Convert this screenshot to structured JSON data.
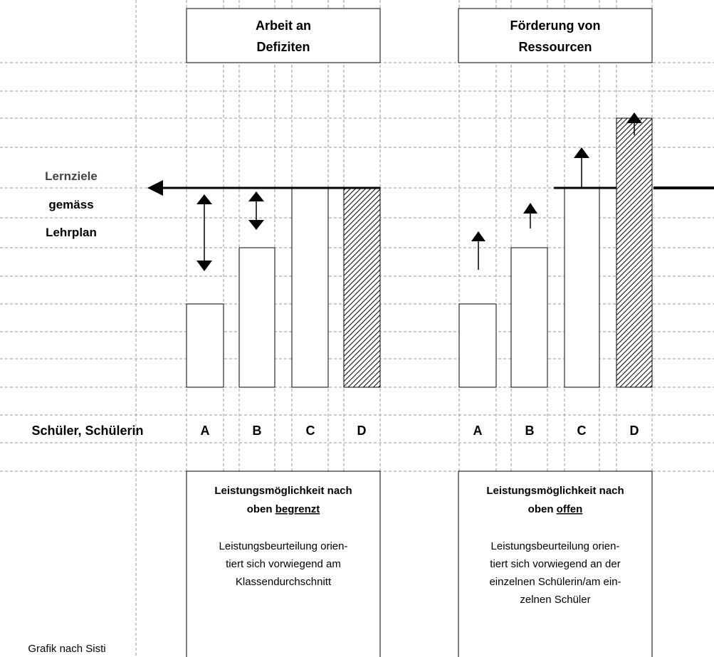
{
  "header_left": {
    "line1": "Arbeit an",
    "line2": "Defiziten"
  },
  "header_right": {
    "line1": "Förderung von",
    "line2": "Ressourcen"
  },
  "goal_label": {
    "line1": "Lernziele",
    "line2": "gemäss",
    "line3": "Lehrplan"
  },
  "students_label": "Schüler, Schülerin",
  "students_left": [
    "A",
    "B",
    "C",
    "D"
  ],
  "students_right": [
    "A",
    "B",
    "C",
    "D"
  ],
  "note_left": {
    "title_line1": "Leistungsmöglichkeit nach",
    "title_line2_prefix": "oben ",
    "title_line2_underlined": "begrenzt",
    "body": [
      "Leistungsbeurteilung orien-",
      "tiert sich vorwiegend am",
      "Klassendurchschnitt"
    ]
  },
  "note_right": {
    "title_line1": "Leistungsmöglichkeit nach",
    "title_line2_prefix": "oben ",
    "title_line2_underlined": "offen",
    "body": [
      "Leistungsbeurteilung orien-",
      "tiert sich vorwiegend an der",
      "einzelnen Schülerin/am ein-",
      "zelnen Schüler"
    ]
  },
  "credit": "Grafik nach Sisti"
}
